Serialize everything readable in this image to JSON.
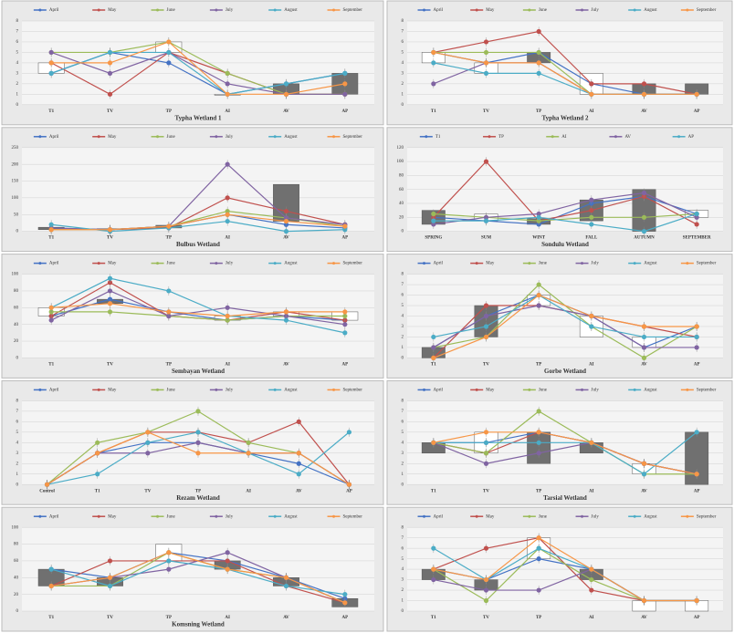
{
  "chart_data": [
    {
      "type": "line",
      "title": "Typha Wetland 1",
      "categories": [
        "T1",
        "TV",
        "TP",
        "AI",
        "AV",
        "AP"
      ],
      "ylim": [
        0,
        8
      ],
      "yticks": [
        0,
        1,
        2,
        3,
        4,
        5,
        6,
        7,
        8
      ],
      "grid": true,
      "series": [
        {
          "name": "April",
          "color": "#4472c4",
          "values": [
            3,
            5,
            4,
            1,
            2,
            3
          ]
        },
        {
          "name": "May",
          "color": "#c0504d",
          "values": [
            4,
            1,
            5,
            3,
            1,
            1
          ]
        },
        {
          "name": "June",
          "color": "#9bbb59",
          "values": [
            5,
            5,
            6,
            3,
            1,
            1
          ]
        },
        {
          "name": "July",
          "color": "#8064a2",
          "values": [
            5,
            3,
            5,
            2,
            1,
            1
          ]
        },
        {
          "name": "August",
          "color": "#4bacc6",
          "values": [
            3,
            5,
            5,
            1,
            2,
            3
          ]
        },
        {
          "name": "September",
          "color": "#f79646",
          "values": [
            4,
            4,
            6,
            1,
            1,
            2
          ]
        }
      ],
      "box_low": [
        3,
        null,
        5,
        1,
        1,
        1
      ],
      "box_high": [
        4,
        null,
        6,
        1,
        2,
        3
      ],
      "box_fill": [
        "#ffffff",
        null,
        "#ffffff",
        "#ffffff",
        "#707070",
        "#707070"
      ]
    },
    {
      "type": "line",
      "title": "Typha Wetland 2",
      "categories": [
        "T1",
        "TV",
        "TP",
        "AI",
        "AV",
        "AP"
      ],
      "ylim": [
        0,
        8
      ],
      "yticks": [
        0,
        1,
        2,
        3,
        4,
        5,
        6,
        7,
        8
      ],
      "grid": true,
      "series": [
        {
          "name": "April",
          "color": "#4472c4",
          "values": [
            5,
            4,
            5,
            2,
            1,
            1
          ]
        },
        {
          "name": "May",
          "color": "#c0504d",
          "values": [
            5,
            6,
            7,
            2,
            2,
            1
          ]
        },
        {
          "name": "June",
          "color": "#9bbb59",
          "values": [
            5,
            5,
            5,
            1,
            1,
            1
          ]
        },
        {
          "name": "July",
          "color": "#8064a2",
          "values": [
            2,
            4,
            4,
            1,
            1,
            1
          ]
        },
        {
          "name": "August",
          "color": "#4bacc6",
          "values": [
            4,
            3,
            3,
            1,
            1,
            1
          ]
        },
        {
          "name": "September",
          "color": "#f79646",
          "values": [
            5,
            4,
            4,
            1,
            1,
            1
          ]
        }
      ],
      "box_low": [
        4,
        3,
        4,
        1,
        1,
        1
      ],
      "box_high": [
        5,
        4,
        5,
        3,
        2,
        2
      ],
      "box_fill": [
        "#ffffff",
        "#ffffff",
        "#707070",
        "#ffffff",
        "#707070",
        "#707070"
      ]
    },
    {
      "type": "line",
      "title": "Bulbus Wetland",
      "categories": [
        "T1",
        "TV",
        "TP",
        "AI",
        "AV",
        "AP"
      ],
      "ylim": [
        0,
        250
      ],
      "yticks": [
        0,
        50,
        100,
        150,
        200,
        250
      ],
      "grid": true,
      "series": [
        {
          "name": "April",
          "color": "#4472c4",
          "values": [
            10,
            5,
            15,
            50,
            20,
            10
          ]
        },
        {
          "name": "May",
          "color": "#c0504d",
          "values": [
            5,
            5,
            10,
            100,
            60,
            20
          ]
        },
        {
          "name": "June",
          "color": "#9bbb59",
          "values": [
            5,
            5,
            15,
            60,
            40,
            15
          ]
        },
        {
          "name": "July",
          "color": "#8064a2",
          "values": [
            10,
            5,
            15,
            200,
            40,
            20
          ]
        },
        {
          "name": "August",
          "color": "#4bacc6",
          "values": [
            20,
            0,
            10,
            30,
            0,
            5
          ]
        },
        {
          "name": "September",
          "color": "#f79646",
          "values": [
            5,
            5,
            15,
            50,
            30,
            15
          ]
        }
      ],
      "box_low": [
        5,
        5,
        10,
        null,
        30,
        null
      ],
      "box_high": [
        12,
        8,
        18,
        null,
        140,
        null
      ],
      "box_fill": [
        "#707070",
        "#ffffff",
        "#707070",
        null,
        "#707070",
        null
      ]
    },
    {
      "type": "line",
      "title": "Sondulu Wetland",
      "categories": [
        "SPRING",
        "SUM",
        "WINT",
        "FALL",
        "AUTUMN",
        "SEPTEMBER"
      ],
      "ylim": [
        0,
        120
      ],
      "yticks": [
        0,
        20,
        40,
        60,
        80,
        100,
        120
      ],
      "grid": true,
      "series": [
        {
          "name": "T1",
          "color": "#4472c4",
          "values": [
            20,
            15,
            10,
            40,
            50,
            25
          ]
        },
        {
          "name": "TP",
          "color": "#c0504d",
          "values": [
            20,
            100,
            15,
            30,
            50,
            10
          ]
        },
        {
          "name": "AI",
          "color": "#9bbb59",
          "values": [
            25,
            20,
            15,
            20,
            20,
            25
          ]
        },
        {
          "name": "AV",
          "color": "#8064a2",
          "values": [
            10,
            20,
            25,
            45,
            55,
            20
          ]
        },
        {
          "name": "AP",
          "color": "#4bacc6",
          "values": [
            15,
            15,
            20,
            10,
            0,
            25
          ]
        }
      ],
      "box_low": [
        10,
        15,
        10,
        15,
        0,
        20
      ],
      "box_high": [
        30,
        25,
        18,
        45,
        60,
        30
      ],
      "box_fill": [
        "#707070",
        "#ffffff",
        "#707070",
        "#707070",
        "#707070",
        "#ffffff"
      ]
    },
    {
      "type": "line",
      "title": "Sembayan Wetland",
      "categories": [
        "T1",
        "TV",
        "TP",
        "AI",
        "AV",
        "AP"
      ],
      "ylim": [
        0,
        100
      ],
      "yticks": [
        0,
        20,
        40,
        60,
        80,
        100
      ],
      "grid": true,
      "series": [
        {
          "name": "April",
          "color": "#4472c4",
          "values": [
            50,
            70,
            55,
            45,
            50,
            45
          ]
        },
        {
          "name": "May",
          "color": "#c0504d",
          "values": [
            50,
            90,
            50,
            45,
            55,
            45
          ]
        },
        {
          "name": "June",
          "color": "#9bbb59",
          "values": [
            55,
            55,
            50,
            45,
            50,
            50
          ]
        },
        {
          "name": "July",
          "color": "#8064a2",
          "values": [
            45,
            80,
            50,
            60,
            50,
            40
          ]
        },
        {
          "name": "August",
          "color": "#4bacc6",
          "values": [
            60,
            95,
            80,
            50,
            45,
            30
          ]
        },
        {
          "name": "September",
          "color": "#f79646",
          "values": [
            60,
            65,
            55,
            50,
            55,
            55
          ]
        }
      ],
      "box_low": [
        50,
        65,
        null,
        45,
        50,
        45
      ],
      "box_high": [
        60,
        70,
        null,
        50,
        55,
        55
      ],
      "box_fill": [
        "#ffffff",
        "#707070",
        null,
        "#ffffff",
        "#ffffff",
        "#ffffff"
      ]
    },
    {
      "type": "line",
      "title": "Gorbe Wetland",
      "categories": [
        "T1",
        "TV",
        "TP",
        "AI",
        "AV",
        "AP"
      ],
      "ylim": [
        0,
        8
      ],
      "yticks": [
        0,
        1,
        2,
        3,
        4,
        5,
        6,
        7,
        8
      ],
      "grid": true,
      "series": [
        {
          "name": "April",
          "color": "#4472c4",
          "values": [
            1,
            4,
            6,
            4,
            1,
            3
          ]
        },
        {
          "name": "May",
          "color": "#c0504d",
          "values": [
            0,
            5,
            5,
            4,
            3,
            2
          ]
        },
        {
          "name": "June",
          "color": "#9bbb59",
          "values": [
            1,
            2,
            7,
            3,
            0,
            3
          ]
        },
        {
          "name": "July",
          "color": "#8064a2",
          "values": [
            1,
            4,
            5,
            4,
            1,
            1
          ]
        },
        {
          "name": "August",
          "color": "#4bacc6",
          "values": [
            2,
            3,
            6,
            3,
            2,
            2
          ]
        },
        {
          "name": "September",
          "color": "#f79646",
          "values": [
            0,
            2,
            6,
            4,
            3,
            3
          ]
        }
      ],
      "box_low": [
        0,
        2,
        5,
        2,
        1,
        null
      ],
      "box_high": [
        1,
        5,
        6,
        4,
        2,
        null
      ],
      "box_fill": [
        "#707070",
        "#707070",
        "#ffffff",
        "#ffffff",
        "#ffffff",
        null
      ]
    },
    {
      "type": "line",
      "title": "Rezam Wetland",
      "categories": [
        "Control",
        "T1",
        "TV",
        "TP",
        "AI",
        "AV",
        "AP"
      ],
      "ylim": [
        0,
        8
      ],
      "yticks": [
        0,
        1,
        2,
        3,
        4,
        5,
        6,
        7,
        8
      ],
      "grid": true,
      "series": [
        {
          "name": "April",
          "color": "#4472c4",
          "values": [
            0,
            3,
            4,
            4,
            3,
            2,
            0
          ]
        },
        {
          "name": "May",
          "color": "#c0504d",
          "values": [
            0,
            3,
            5,
            5,
            4,
            6,
            0
          ]
        },
        {
          "name": "June",
          "color": "#9bbb59",
          "values": [
            0,
            4,
            5,
            7,
            4,
            3,
            0
          ]
        },
        {
          "name": "July",
          "color": "#8064a2",
          "values": [
            0,
            3,
            3,
            4,
            3,
            3,
            0
          ]
        },
        {
          "name": "August",
          "color": "#4bacc6",
          "values": [
            0,
            1,
            4,
            5,
            3,
            1,
            5
          ]
        },
        {
          "name": "September",
          "color": "#f79646",
          "values": [
            0,
            3,
            5,
            3,
            3,
            3,
            0
          ]
        }
      ]
    },
    {
      "type": "line",
      "title": "Tarsial Wetland",
      "categories": [
        "T1",
        "TV",
        "TP",
        "AI",
        "AV",
        "AP"
      ],
      "ylim": [
        0,
        8
      ],
      "yticks": [
        0,
        1,
        2,
        3,
        4,
        5,
        6,
        7,
        8
      ],
      "grid": true,
      "series": [
        {
          "name": "April",
          "color": "#4472c4",
          "values": [
            4,
            4,
            5,
            4,
            2,
            1
          ]
        },
        {
          "name": "May",
          "color": "#c0504d",
          "values": [
            4,
            3,
            5,
            4,
            2,
            1
          ]
        },
        {
          "name": "June",
          "color": "#9bbb59",
          "values": [
            4,
            3,
            7,
            4,
            1,
            1
          ]
        },
        {
          "name": "July",
          "color": "#8064a2",
          "values": [
            4,
            2,
            3,
            4,
            2,
            1
          ]
        },
        {
          "name": "August",
          "color": "#4bacc6",
          "values": [
            4,
            4,
            4,
            4,
            1,
            5
          ]
        },
        {
          "name": "September",
          "color": "#f79646",
          "values": [
            4,
            5,
            5,
            4,
            2,
            1
          ]
        }
      ],
      "box_low": [
        3,
        3,
        2,
        3,
        1,
        0
      ],
      "box_high": [
        4,
        5,
        5,
        4,
        2,
        5
      ],
      "box_fill": [
        "#707070",
        "#ffffff",
        "#707070",
        "#707070",
        "#ffffff",
        "#707070"
      ]
    },
    {
      "type": "line",
      "title": "Komsning Wetland",
      "categories": [
        "T1",
        "TV",
        "TP",
        "AI",
        "AV",
        "AP"
      ],
      "ylim": [
        0,
        100
      ],
      "yticks": [
        0,
        20,
        40,
        60,
        80,
        100
      ],
      "grid": true,
      "series": [
        {
          "name": "April",
          "color": "#4472c4",
          "values": [
            50,
            40,
            70,
            60,
            40,
            15
          ]
        },
        {
          "name": "May",
          "color": "#c0504d",
          "values": [
            30,
            60,
            60,
            60,
            30,
            10
          ]
        },
        {
          "name": "June",
          "color": "#9bbb59",
          "values": [
            30,
            30,
            70,
            50,
            40,
            10
          ]
        },
        {
          "name": "July",
          "color": "#8064a2",
          "values": [
            30,
            40,
            50,
            70,
            40,
            10
          ]
        },
        {
          "name": "August",
          "color": "#4bacc6",
          "values": [
            50,
            30,
            60,
            50,
            30,
            20
          ]
        },
        {
          "name": "September",
          "color": "#f79646",
          "values": [
            30,
            40,
            70,
            50,
            40,
            10
          ]
        }
      ],
      "box_low": [
        30,
        30,
        60,
        50,
        30,
        5
      ],
      "box_high": [
        50,
        40,
        80,
        60,
        40,
        15
      ],
      "box_fill": [
        "#707070",
        "#707070",
        "#ffffff",
        "#707070",
        "#707070",
        "#707070"
      ]
    },
    {
      "type": "line",
      "categories": [
        "T1",
        "TV",
        "TP",
        "AI",
        "AV",
        "AP"
      ],
      "ylim": [
        0,
        8
      ],
      "yticks": [
        0,
        1,
        2,
        3,
        4,
        5,
        6,
        7,
        8
      ],
      "grid": true,
      "series": [
        {
          "name": "April",
          "color": "#4472c4",
          "values": [
            4,
            3,
            5,
            4,
            1,
            1
          ]
        },
        {
          "name": "May",
          "color": "#c0504d",
          "values": [
            4,
            6,
            7,
            2,
            1,
            1
          ]
        },
        {
          "name": "June",
          "color": "#9bbb59",
          "values": [
            4,
            1,
            6,
            3,
            1,
            1
          ]
        },
        {
          "name": "July",
          "color": "#8064a2",
          "values": [
            3,
            2,
            2,
            4,
            1,
            1
          ]
        },
        {
          "name": "August",
          "color": "#4bacc6",
          "values": [
            6,
            3,
            6,
            4,
            1,
            1
          ]
        },
        {
          "name": "September",
          "color": "#f79646",
          "values": [
            4,
            3,
            7,
            4,
            1,
            1
          ]
        }
      ],
      "box_low": [
        3,
        2,
        5,
        3,
        0,
        0
      ],
      "box_high": [
        4,
        3,
        7,
        4,
        1,
        1
      ],
      "box_fill": [
        "#707070",
        "#707070",
        "#ffffff",
        "#707070",
        "#ffffff",
        "#ffffff"
      ]
    }
  ]
}
